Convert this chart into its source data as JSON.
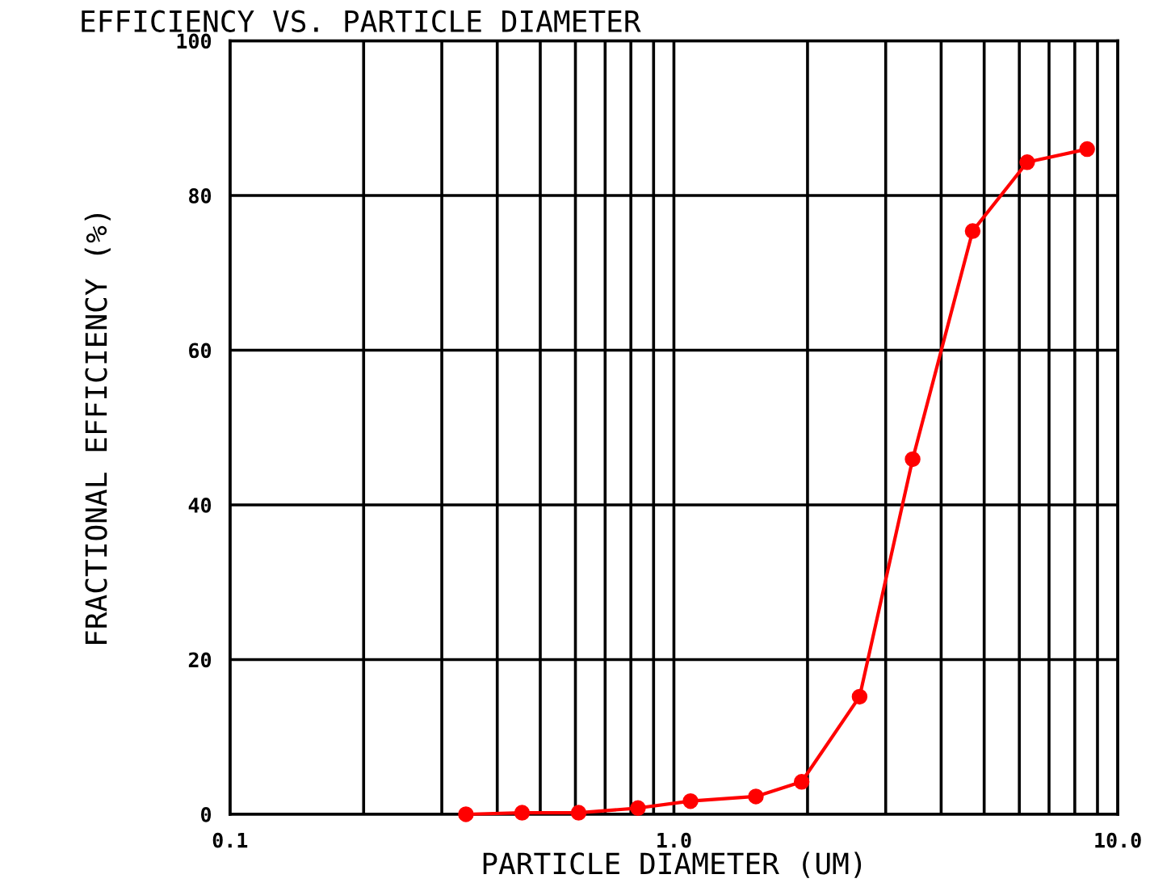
{
  "chart_data": {
    "type": "line",
    "title": "EFFICIENCY VS. PARTICLE DIAMETER",
    "xlabel": "PARTICLE DIAMETER (UM)",
    "ylabel": "FRACTIONAL EFFICIENCY (%)",
    "log": "x",
    "xlim": [
      0.1,
      10
    ],
    "ylim": [
      0,
      100
    ],
    "xticks": [
      {
        "value": 0.1,
        "label": "0.1"
      },
      {
        "value": 0.2,
        "label": null
      },
      {
        "value": 0.3,
        "label": null
      },
      {
        "value": 0.4,
        "label": null
      },
      {
        "value": 0.5,
        "label": null
      },
      {
        "value": 0.6,
        "label": null
      },
      {
        "value": 0.7,
        "label": null
      },
      {
        "value": 0.8,
        "label": null
      },
      {
        "value": 0.9,
        "label": null
      },
      {
        "value": 1,
        "label": "1.0"
      },
      {
        "value": 2,
        "label": null
      },
      {
        "value": 3,
        "label": null
      },
      {
        "value": 4,
        "label": null
      },
      {
        "value": 5,
        "label": null
      },
      {
        "value": 6,
        "label": null
      },
      {
        "value": 7,
        "label": null
      },
      {
        "value": 8,
        "label": null
      },
      {
        "value": 9,
        "label": null
      },
      {
        "value": 10,
        "label": "10.0"
      }
    ],
    "yticks": [
      0,
      20,
      40,
      60,
      80,
      100
    ],
    "grid": true,
    "marker": "circle",
    "line_style": "solid",
    "x": [
      0.34,
      0.455,
      0.61,
      0.83,
      1.09,
      1.53,
      1.94,
      2.62,
      3.45,
      4.71,
      6.25,
      8.53
    ],
    "series": [
      {
        "color": "#ff0000",
        "values": [
          0,
          0.2,
          0.2,
          0.8,
          1.7,
          2.3,
          4.2,
          15.2,
          45.9,
          75.4,
          84.3,
          86.0
        ]
      }
    ]
  }
}
